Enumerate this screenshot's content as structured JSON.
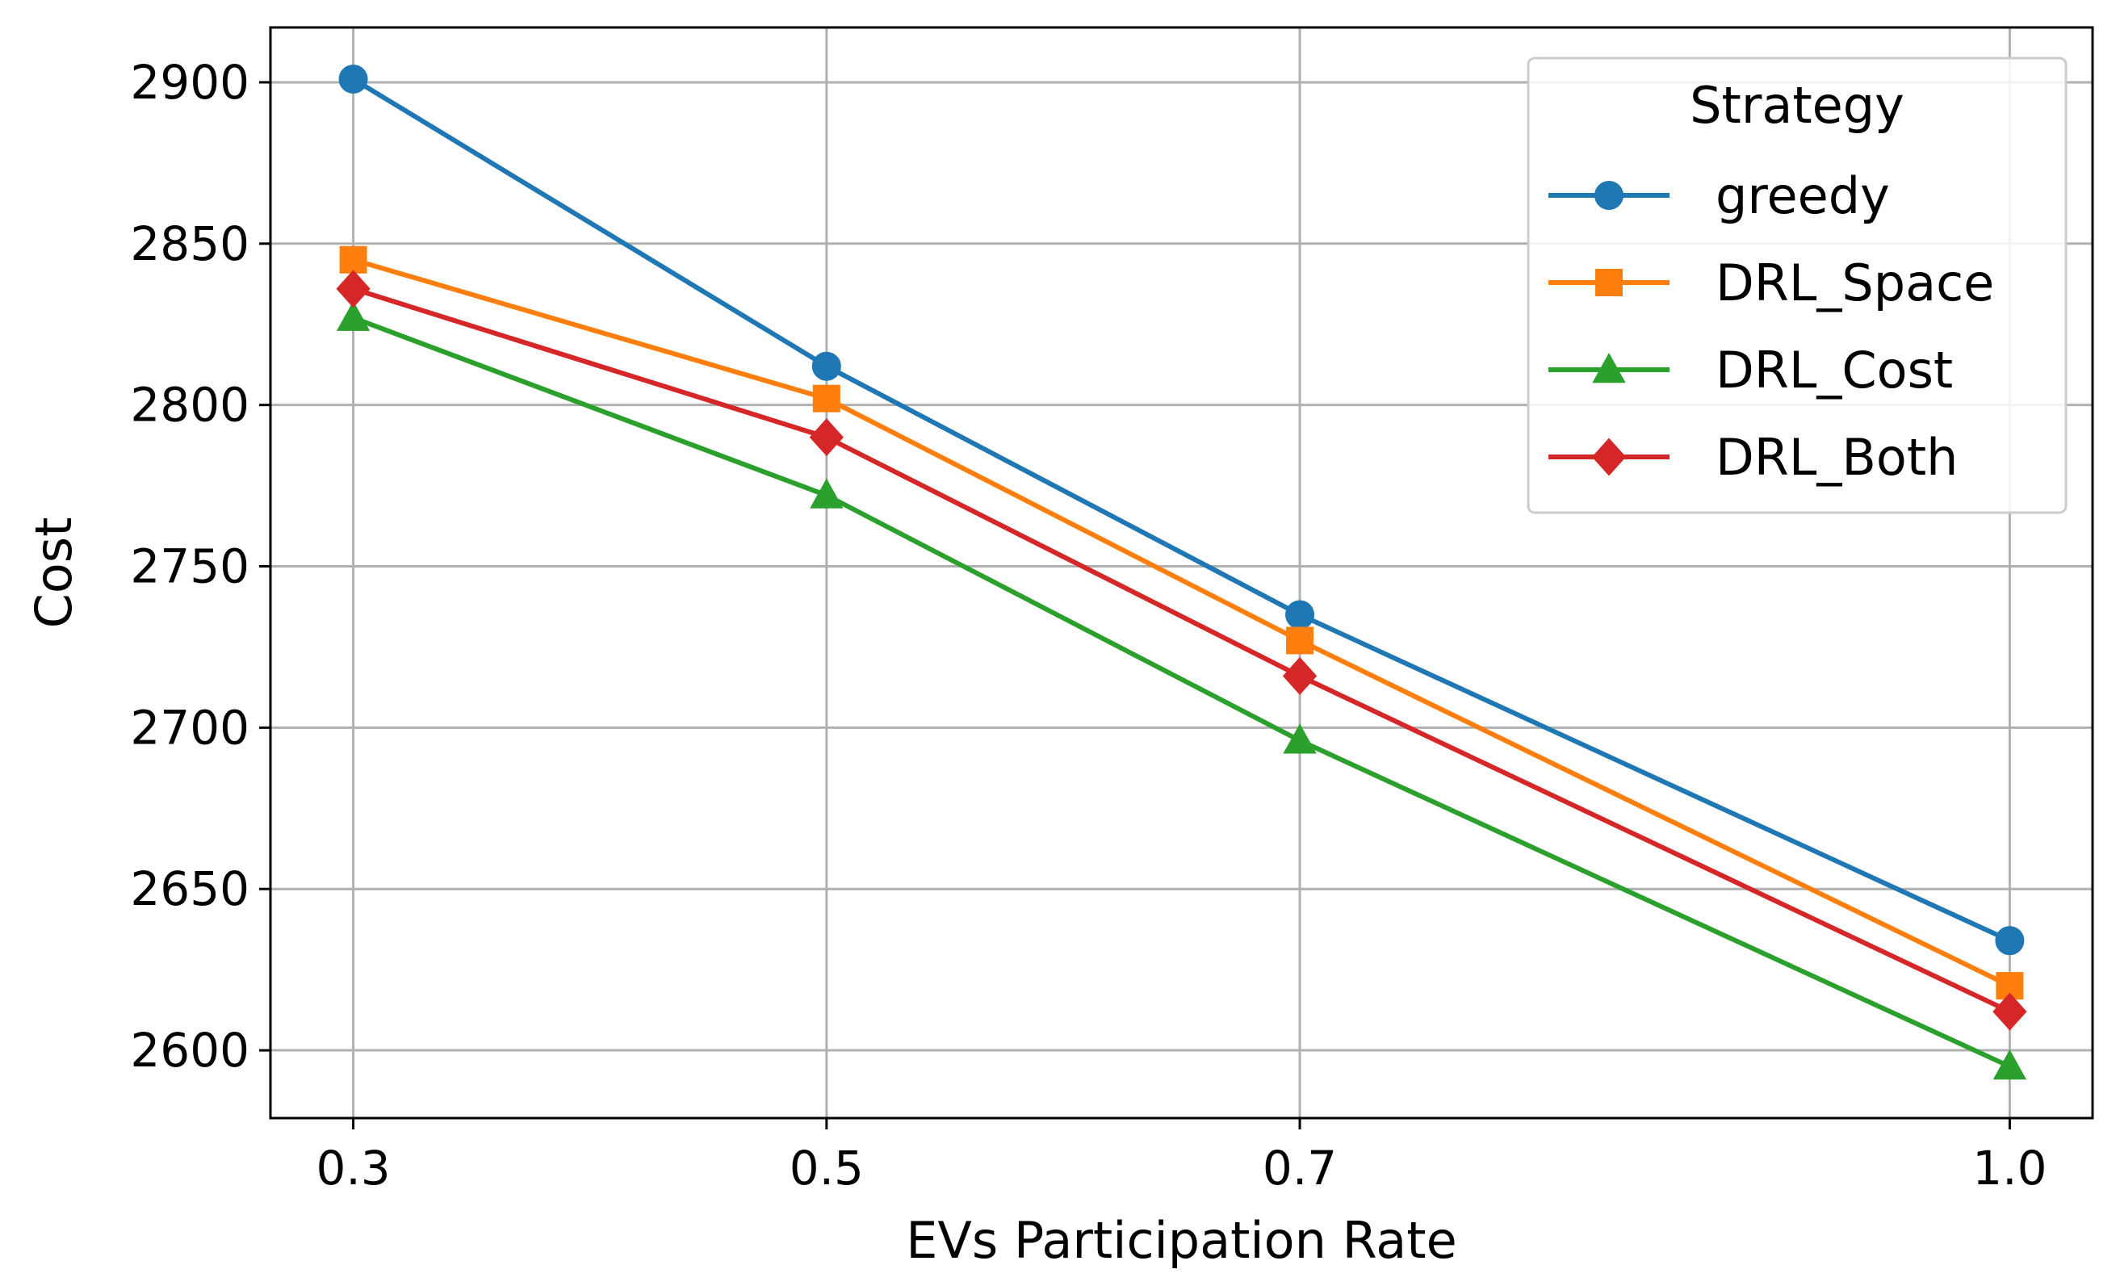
{
  "chart_data": {
    "type": "line",
    "x": [
      0.3,
      0.5,
      0.7,
      1.0
    ],
    "x_tick_labels": [
      "0.3",
      "0.5",
      "0.7",
      "1.0"
    ],
    "xlabel": "EVs Participation Rate",
    "ylabel": "Cost",
    "ylim": [
      2579,
      2917
    ],
    "xlim": [
      0.265,
      1.035
    ],
    "y_ticks": [
      2600,
      2650,
      2700,
      2750,
      2800,
      2850,
      2900
    ],
    "grid": true,
    "legend": {
      "title": "Strategy",
      "placement": "top-right"
    },
    "series": [
      {
        "name": "greedy",
        "values": [
          2901,
          2812,
          2735,
          2634
        ],
        "color": "#1f77b4",
        "marker": "circle"
      },
      {
        "name": "DRL_Space",
        "values": [
          2845,
          2802,
          2727,
          2620
        ],
        "color": "#ff7f0e",
        "marker": "square"
      },
      {
        "name": "DRL_Cost",
        "values": [
          2827,
          2772,
          2696,
          2595
        ],
        "color": "#2ca02c",
        "marker": "triangle"
      },
      {
        "name": "DRL_Both",
        "values": [
          2836,
          2790,
          2716,
          2612
        ],
        "color": "#d62728",
        "marker": "diamond"
      }
    ]
  }
}
